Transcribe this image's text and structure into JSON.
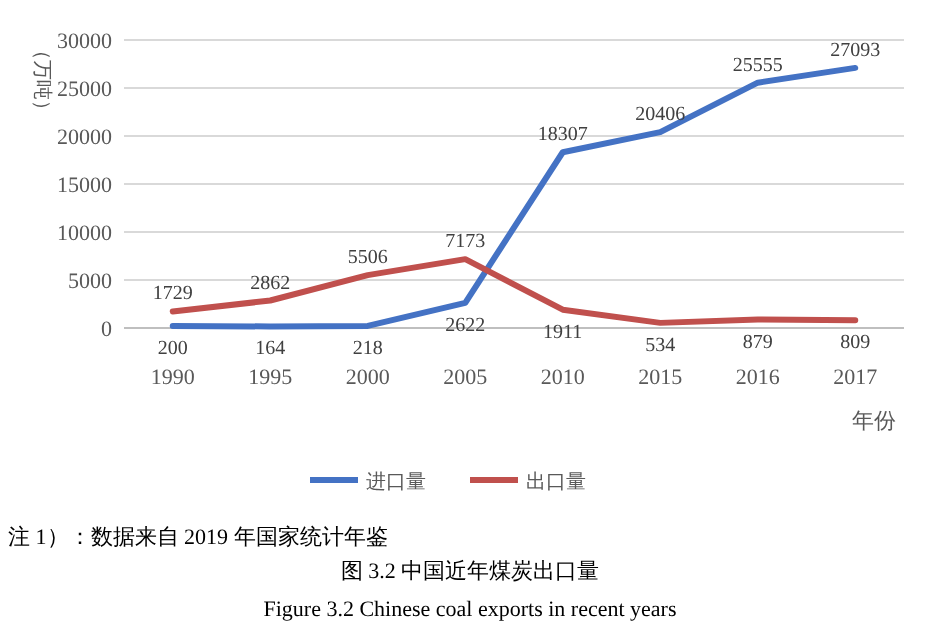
{
  "chart_data": {
    "type": "line",
    "title": "图 3.2 中国近年煤炭出口量",
    "subtitle": "Figure 3.2 Chinese coal exports in recent years",
    "xlabel": "年份",
    "ylabel": "（万吨）",
    "annotations": [
      "注 1）：数据来自 2019 年国家统计年鉴"
    ],
    "categories": [
      "1990",
      "1995",
      "2000",
      "2005",
      "2010",
      "2015",
      "2016",
      "2017"
    ],
    "series": [
      {
        "name": "进口量",
        "color": "#4472c4",
        "values": [
          200,
          164,
          218,
          2622,
          18307,
          20406,
          25555,
          27093
        ]
      },
      {
        "name": "出口量",
        "color": "#c0504d",
        "values": [
          1729,
          2862,
          5506,
          7173,
          1911,
          534,
          879,
          809
        ]
      }
    ],
    "ylim": [
      0,
      30000
    ],
    "yticks": [
      0,
      5000,
      10000,
      15000,
      20000,
      25000,
      30000
    ],
    "grid": "y",
    "legend": "bottom",
    "data_labels": true,
    "marker": "none",
    "line_style": "solid"
  }
}
